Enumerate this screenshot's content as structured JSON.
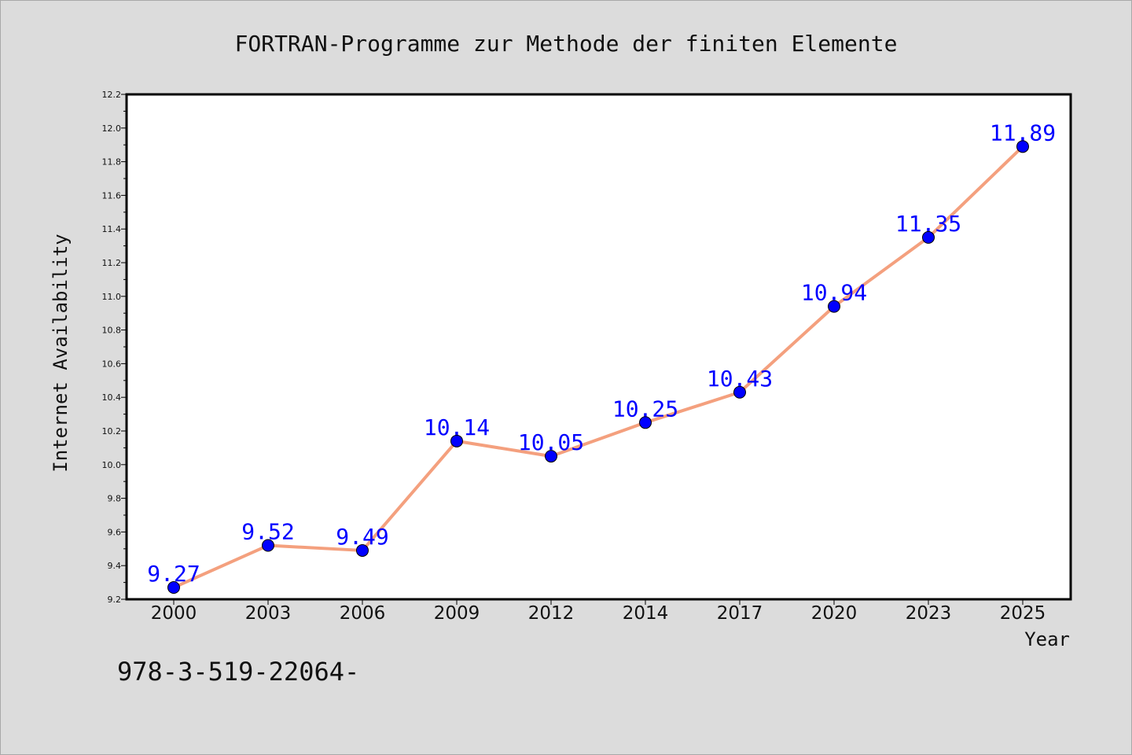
{
  "chart_data": {
    "type": "line",
    "title": "FORTRAN-Programme zur Methode der finiten Elemente",
    "xlabel": "Year",
    "ylabel": "Internet Availability",
    "categories": [
      "2000",
      "2003",
      "2006",
      "2009",
      "2012",
      "2014",
      "2017",
      "2020",
      "2023",
      "2025"
    ],
    "values": [
      9.27,
      9.52,
      9.49,
      10.14,
      10.05,
      10.25,
      10.43,
      10.94,
      11.35,
      11.89
    ],
    "data_labels": [
      "9.27",
      "9.52",
      "9.49",
      "10.14",
      "10.05",
      "10.25",
      "10.43",
      "10.94",
      "11.35",
      "11.89"
    ],
    "ylim": [
      9.2,
      12.2
    ],
    "yticks": [
      "9.2",
      "9.4",
      "9.6",
      "9.8",
      "10.0",
      "10.2",
      "10.4",
      "10.6",
      "10.8",
      "11.0",
      "11.2",
      "11.4",
      "11.6",
      "11.8",
      "12.0",
      "12.2"
    ],
    "grid": false,
    "legend": "none",
    "colors": {
      "line": "#f4a07e",
      "marker": "#0000ff",
      "data_label": "#0000ff",
      "plot_bg": "#ffffff",
      "page_bg": "#dcdcdc"
    }
  },
  "footer_text": "978-3-519-22064-"
}
